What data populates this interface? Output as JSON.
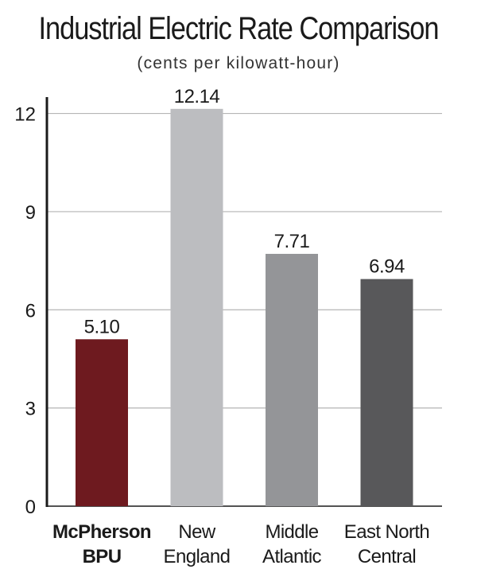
{
  "chart_data": {
    "type": "bar",
    "title": "Industrial Electric Rate Comparison",
    "subtitle": "(cents per kilowatt-hour)",
    "categories": [
      [
        "McPherson",
        "BPU"
      ],
      [
        "New",
        "England"
      ],
      [
        "Middle",
        "Atlantic"
      ],
      [
        "East North",
        "Central"
      ]
    ],
    "values": [
      5.1,
      12.14,
      7.71,
      6.94
    ],
    "value_labels": [
      "5.10",
      "12.14",
      "7.71",
      "6.94"
    ],
    "bar_colors": [
      "#6e1a1f",
      "#bcbdc0",
      "#949598",
      "#58585a"
    ],
    "bold_category_index": 0,
    "yticks": [
      "0",
      "3",
      "6",
      "9",
      "12"
    ],
    "ylim": [
      0,
      12.5
    ],
    "grid": true,
    "xlabel": "",
    "ylabel": ""
  }
}
